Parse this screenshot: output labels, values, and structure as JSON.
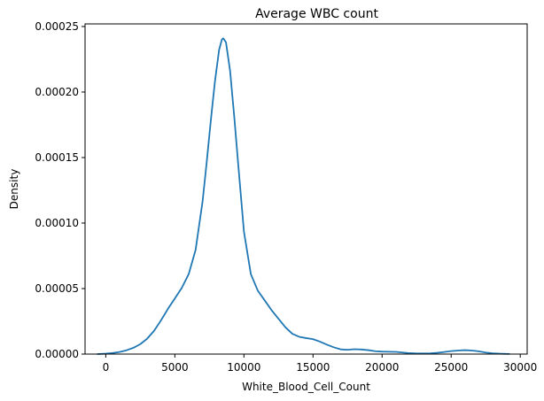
{
  "chart_data": {
    "type": "line",
    "title": "Average WBC count",
    "xlabel": "White_Blood_Cell_Count",
    "ylabel": "Density",
    "xlim": [
      -1500,
      30500
    ],
    "ylim": [
      0,
      0.000252
    ],
    "x_ticks": [
      0,
      5000,
      10000,
      15000,
      20000,
      25000,
      30000
    ],
    "x_tick_labels": [
      "0",
      "5000",
      "10000",
      "15000",
      "20000",
      "25000",
      "30000"
    ],
    "y_ticks": [
      0,
      5e-05,
      0.0001,
      0.00015,
      0.0002,
      0.00025
    ],
    "y_tick_labels": [
      "0.00000",
      "0.00005",
      "0.00010",
      "0.00015",
      "0.00020",
      "0.00025"
    ],
    "grid": false,
    "legend": "none",
    "series": [
      {
        "color": "#1f77b4",
        "x": [
          -600,
          0,
          500,
          1000,
          1500,
          2000,
          2500,
          3000,
          3500,
          4000,
          4500,
          5000,
          5500,
          6000,
          6500,
          7000,
          7300,
          7600,
          7900,
          8200,
          8400,
          8500,
          8700,
          9000,
          9300,
          9600,
          10000,
          10500,
          11000,
          11500,
          12000,
          12500,
          13000,
          13500,
          14000,
          14500,
          15000,
          15500,
          16000,
          16500,
          17000,
          17500,
          18000,
          18500,
          19000,
          19500,
          20000,
          20500,
          21000,
          21500,
          22000,
          22500,
          23000,
          23500,
          24000,
          24500,
          25000,
          25500,
          26000,
          26500,
          27000,
          27500,
          28000,
          28500,
          29200
        ],
        "y": [
          0,
          3e-07,
          8e-07,
          1.6e-06,
          2.9e-06,
          4.8e-06,
          7.6e-06,
          1.18e-05,
          1.78e-05,
          2.58e-05,
          3.45e-05,
          4.25e-05,
          5.05e-05,
          6.1e-05,
          7.95e-05,
          0.000116,
          0.000146,
          0.000178,
          0.000208,
          0.000232,
          0.00024,
          0.000241,
          0.000238,
          0.000216,
          0.000181,
          0.000143,
          9.35e-05,
          6.1e-05,
          4.85e-05,
          4.1e-05,
          3.35e-05,
          2.7e-05,
          2.05e-05,
          1.55e-05,
          1.32e-05,
          1.22e-05,
          1.14e-05,
          9.5e-06,
          7.2e-06,
          5.2e-06,
          3.6e-06,
          3.3e-06,
          3.7e-06,
          3.5e-06,
          3e-06,
          2.2e-06,
          1.9e-06,
          1.8e-06,
          1.7e-06,
          1.2e-06,
          7e-07,
          5e-07,
          5e-07,
          6e-07,
          1e-06,
          1.6e-06,
          2.3e-06,
          2.7e-06,
          3e-06,
          2.7e-06,
          2.1e-06,
          1.2e-06,
          6e-07,
          3e-07,
          1e-07
        ]
      }
    ]
  }
}
